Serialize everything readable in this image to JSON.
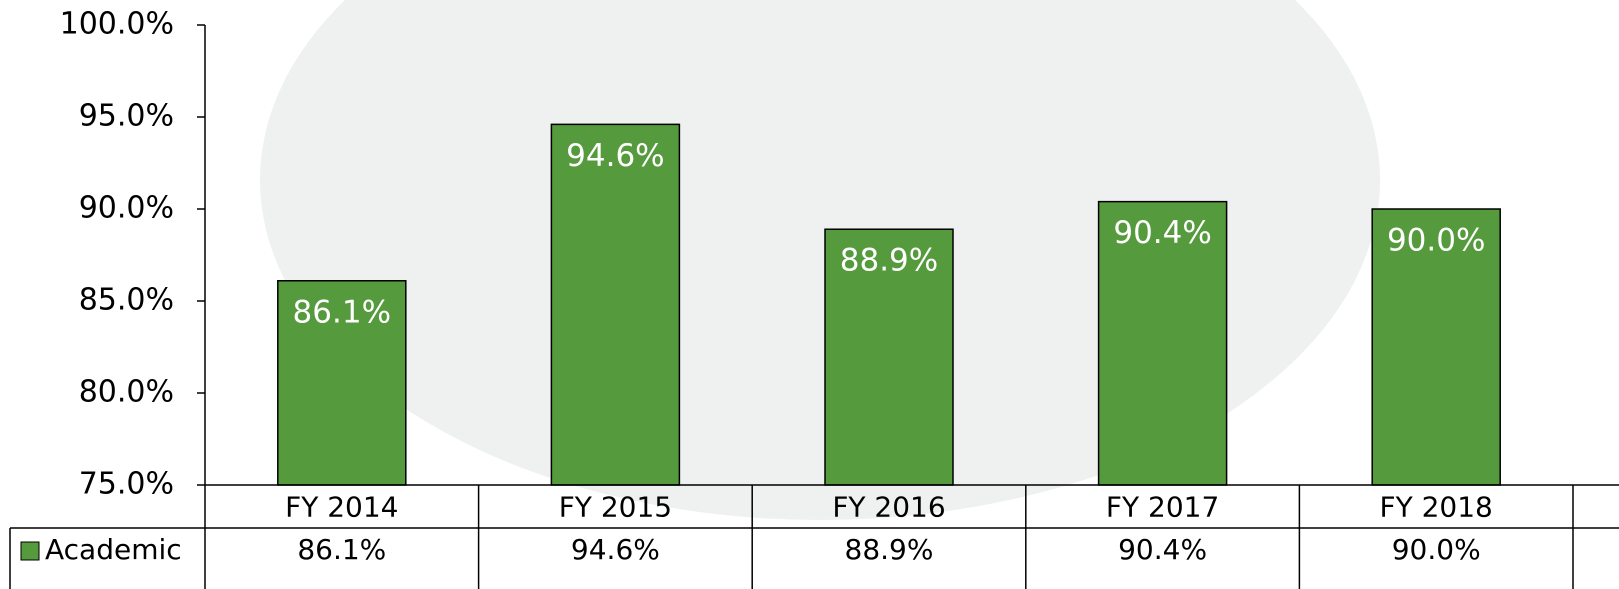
{
  "chart_data": {
    "type": "bar",
    "categories": [
      "FY 2014",
      "FY 2015",
      "FY 2016",
      "FY 2017",
      "FY 2018"
    ],
    "series": [
      {
        "name": "Academic",
        "color": "#559a3c",
        "values": [
          86.1,
          94.6,
          88.9,
          90.4,
          90.0
        ],
        "value_labels": [
          "86.1%",
          "94.6%",
          "88.9%",
          "90.4%",
          "90.0%"
        ]
      }
    ],
    "ylim": [
      75,
      100
    ],
    "yticks": [
      {
        "value": 75,
        "label": "75.0%"
      },
      {
        "value": 80,
        "label": "80.0%"
      },
      {
        "value": 85,
        "label": "85.0%"
      },
      {
        "value": 90,
        "label": "90.0%"
      },
      {
        "value": 95,
        "label": "95.0%"
      },
      {
        "value": 100,
        "label": "100.0%"
      }
    ],
    "data_table": true
  }
}
